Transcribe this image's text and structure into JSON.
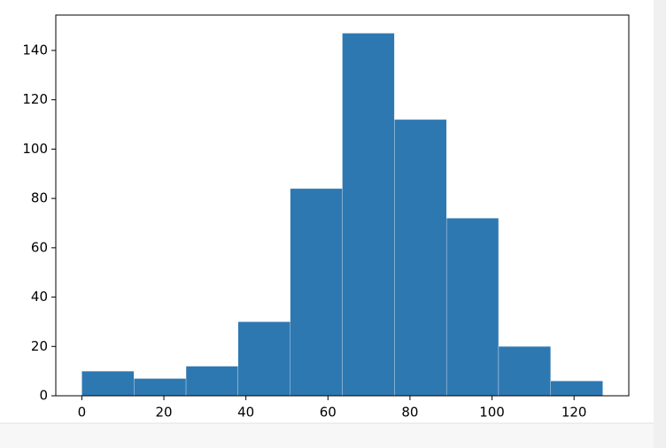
{
  "chart_data": {
    "type": "histogram",
    "bins": [
      0,
      12.7,
      25.4,
      38.1,
      50.8,
      63.5,
      76.2,
      88.9,
      101.6,
      114.3,
      127
    ],
    "values": [
      10,
      7,
      12,
      30,
      84,
      147,
      112,
      72,
      20,
      6
    ],
    "color": "#2e78b2",
    "xlim": [
      -6.35,
      133.35
    ],
    "xticks": [
      0,
      20,
      40,
      60,
      80,
      100,
      120
    ],
    "ylim": [
      0,
      154.35
    ],
    "yticks": [
      0,
      20,
      40,
      60,
      80,
      100,
      120,
      140
    ]
  }
}
